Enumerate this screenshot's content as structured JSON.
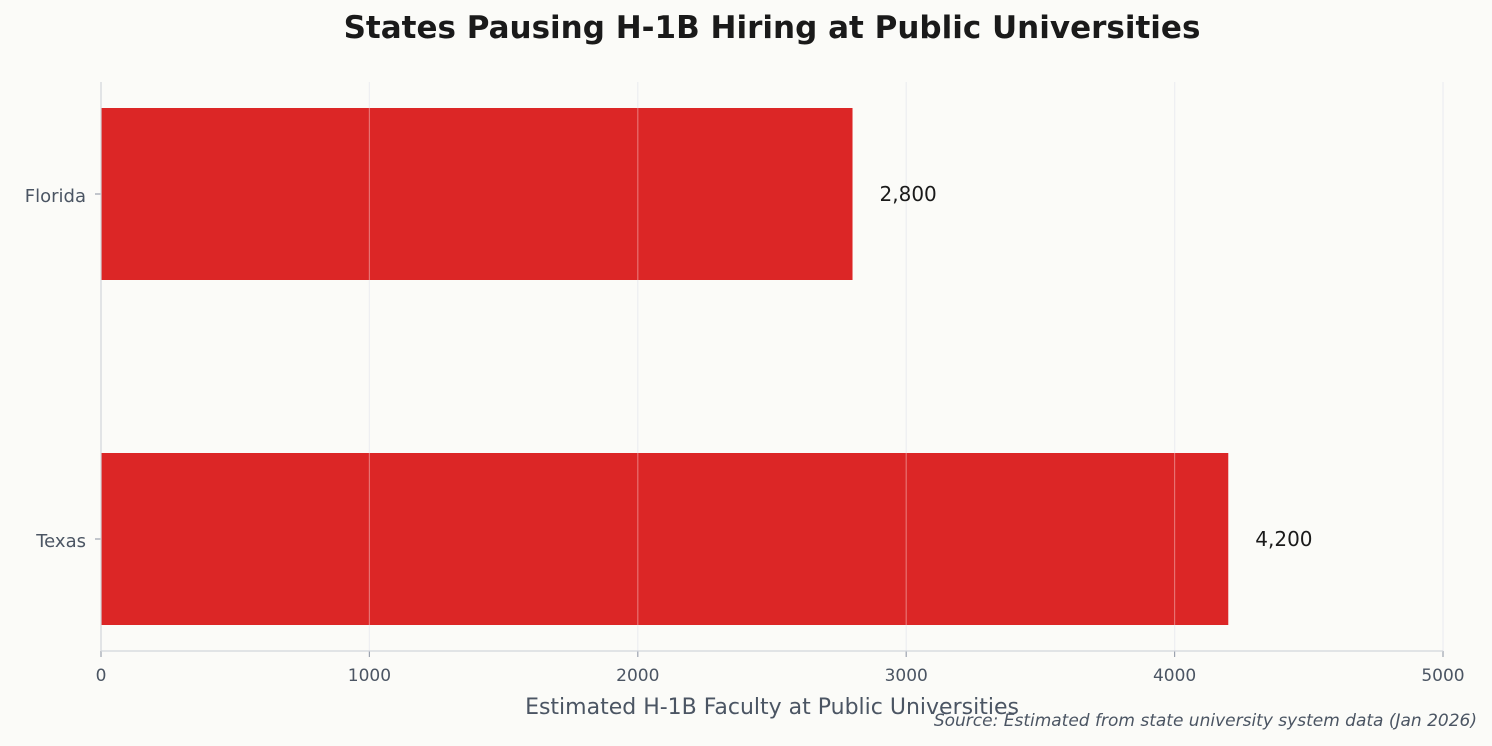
{
  "chart_data": {
    "type": "bar",
    "orientation": "horizontal",
    "title": "States Pausing H-1B Hiring at Public Universities",
    "xlabel": "Estimated H-1B Faculty at Public Universities",
    "ylabel": "",
    "categories": [
      "Florida",
      "Texas"
    ],
    "values": [
      2800,
      4200
    ],
    "value_labels": [
      "2,800",
      "4,200"
    ],
    "xlim": [
      0,
      5000
    ],
    "xticks": [
      "0",
      "1000",
      "2000",
      "3000",
      "4000",
      "5000"
    ],
    "grid": "vertical",
    "bar_color": "#dc2626",
    "source": "Source: Estimated from state university system data (Jan 2026)"
  }
}
